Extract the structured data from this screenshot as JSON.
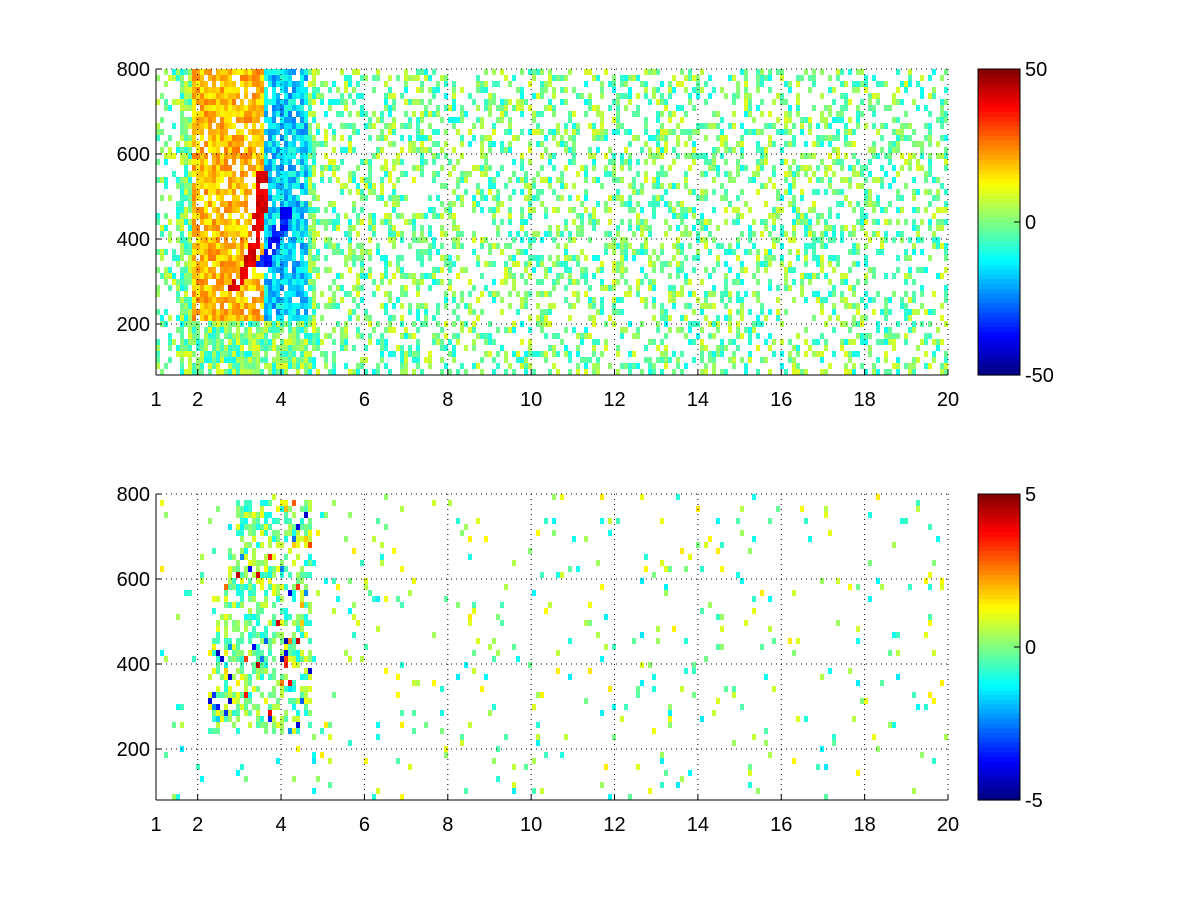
{
  "figure": {
    "background": "#ffffff"
  },
  "chart_data": [
    {
      "type": "heatmap",
      "title": "",
      "xlabel": "",
      "ylabel": "",
      "xlim": [
        1,
        20
      ],
      "ylim": [
        80,
        800
      ],
      "x_tick_labels": [
        "1",
        "2",
        "4",
        "6",
        "8",
        "10",
        "12",
        "14",
        "16",
        "18",
        "20"
      ],
      "x_ticks": [
        1,
        2,
        4,
        6,
        8,
        10,
        12,
        14,
        16,
        18,
        20
      ],
      "y_tick_labels": [
        "200",
        "400",
        "600",
        "800"
      ],
      "y_ticks": [
        200,
        400,
        600,
        800
      ],
      "grid": true,
      "colormap": "jet",
      "clim": [
        -50,
        50
      ],
      "colorbar_tick_labels": [
        "50",
        "0",
        "-50"
      ],
      "colorbar_ticks": [
        50,
        0,
        -50
      ],
      "features": [
        {
          "name": "positive ridge",
          "x": [
            2.4,
            2.8,
            3.1,
            3.3,
            3.45,
            3.5
          ],
          "y": [
            280,
            290,
            320,
            380,
            480,
            560
          ],
          "value": 40
        },
        {
          "name": "negative ridge",
          "x": [
            3.5,
            3.8,
            4.1
          ],
          "y": [
            340,
            400,
            480
          ],
          "value": -35
        }
      ],
      "scatter_density": 0.35,
      "noise_range": [
        -12,
        10
      ]
    },
    {
      "type": "heatmap",
      "title": "",
      "xlabel": "",
      "ylabel": "",
      "xlim": [
        1,
        20
      ],
      "ylim": [
        80,
        800
      ],
      "x_tick_labels": [
        "1",
        "2",
        "4",
        "6",
        "8",
        "10",
        "12",
        "14",
        "16",
        "18",
        "20"
      ],
      "x_ticks": [
        1,
        2,
        4,
        6,
        8,
        10,
        12,
        14,
        16,
        18,
        20
      ],
      "y_tick_labels": [
        "200",
        "400",
        "600",
        "800"
      ],
      "y_ticks": [
        200,
        400,
        600,
        800
      ],
      "grid": true,
      "colormap": "jet",
      "clim": [
        -5,
        5
      ],
      "colorbar_tick_labels": [
        "5",
        "0",
        "-5"
      ],
      "colorbar_ticks": [
        5,
        0,
        -5
      ],
      "features": [
        {
          "name": "main cluster",
          "x": [
            2.2,
            4.7
          ],
          "y": [
            240,
            790
          ],
          "value": 0
        }
      ],
      "scatter_density": 0.04,
      "noise_range": [
        -4,
        4
      ]
    }
  ]
}
